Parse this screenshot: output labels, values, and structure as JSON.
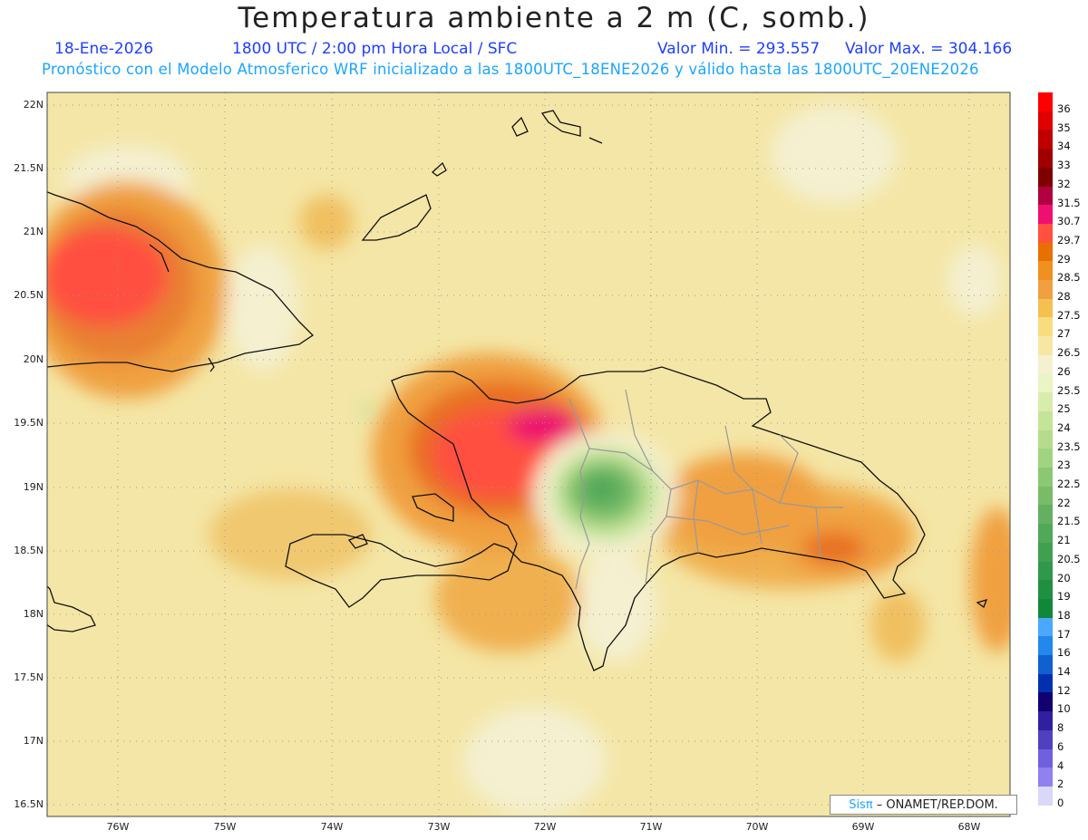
{
  "title": "Temperatura ambiente a 2 m (C, somb.)",
  "subtitle": {
    "date": "18-Ene-2026",
    "time": "1800 UTC / 2:00 pm Hora Local / SFC",
    "min": "Valor Min. = 293.557",
    "max": "Valor Max. = 304.166"
  },
  "forecast_note": "Pronóstico con el Modelo Atmosferico WRF inicializado a las 1800UTC_18ENE2026 y válido hasta las  1800UTC_20ENE2026",
  "lat_labels": [
    "22N",
    "21.5N",
    "21N",
    "20.5N",
    "20N",
    "19.5N",
    "19N",
    "18.5N",
    "18N",
    "17.5N",
    "17N",
    "16.5N"
  ],
  "lon_labels": [
    "76W",
    "75W",
    "74W",
    "73W",
    "72W",
    "71W",
    "70W",
    "69W",
    "68W"
  ],
  "colorbar": {
    "labels": [
      "36",
      "35",
      "34",
      "33",
      "32",
      "31.5",
      "30.7",
      "29.7",
      "29",
      "28.5",
      "28",
      "27.5",
      "27",
      "26.5",
      "26",
      "25.5",
      "25",
      "24",
      "23.5",
      "23",
      "22.5",
      "22",
      "21.5",
      "21",
      "20.5",
      "20",
      "19",
      "18",
      "17",
      "16",
      "14",
      "12",
      "10",
      "8",
      "6",
      "4",
      "2",
      "0"
    ],
    "colors": [
      "#ff0000",
      "#e00000",
      "#c00000",
      "#a00000",
      "#800000",
      "#b00040",
      "#ee1070",
      "#ff5040",
      "#e87000",
      "#f09020",
      "#f0a040",
      "#f4c050",
      "#f8dc80",
      "#f8e6a4",
      "#f4f0d0",
      "#eaf4c4",
      "#d8ecac",
      "#c4e498",
      "#b4dc8c",
      "#a0d480",
      "#8cc874",
      "#78bc68",
      "#64b060",
      "#50a858",
      "#40a050",
      "#30984a",
      "#209040",
      "#108838",
      "#4aa8ff",
      "#2288ee",
      "#1060d0",
      "#0030b0",
      "#100070",
      "#3020a0",
      "#5040c0",
      "#7060e0",
      "#9080f0",
      "#d8d8f8"
    ]
  },
  "credit": {
    "brand": "Sisπ",
    "text": " – ONAMET/REP.DOM."
  },
  "colors": {
    "title": "#222222",
    "subtitle": "#1f3fff",
    "note": "#1aa6ff"
  }
}
